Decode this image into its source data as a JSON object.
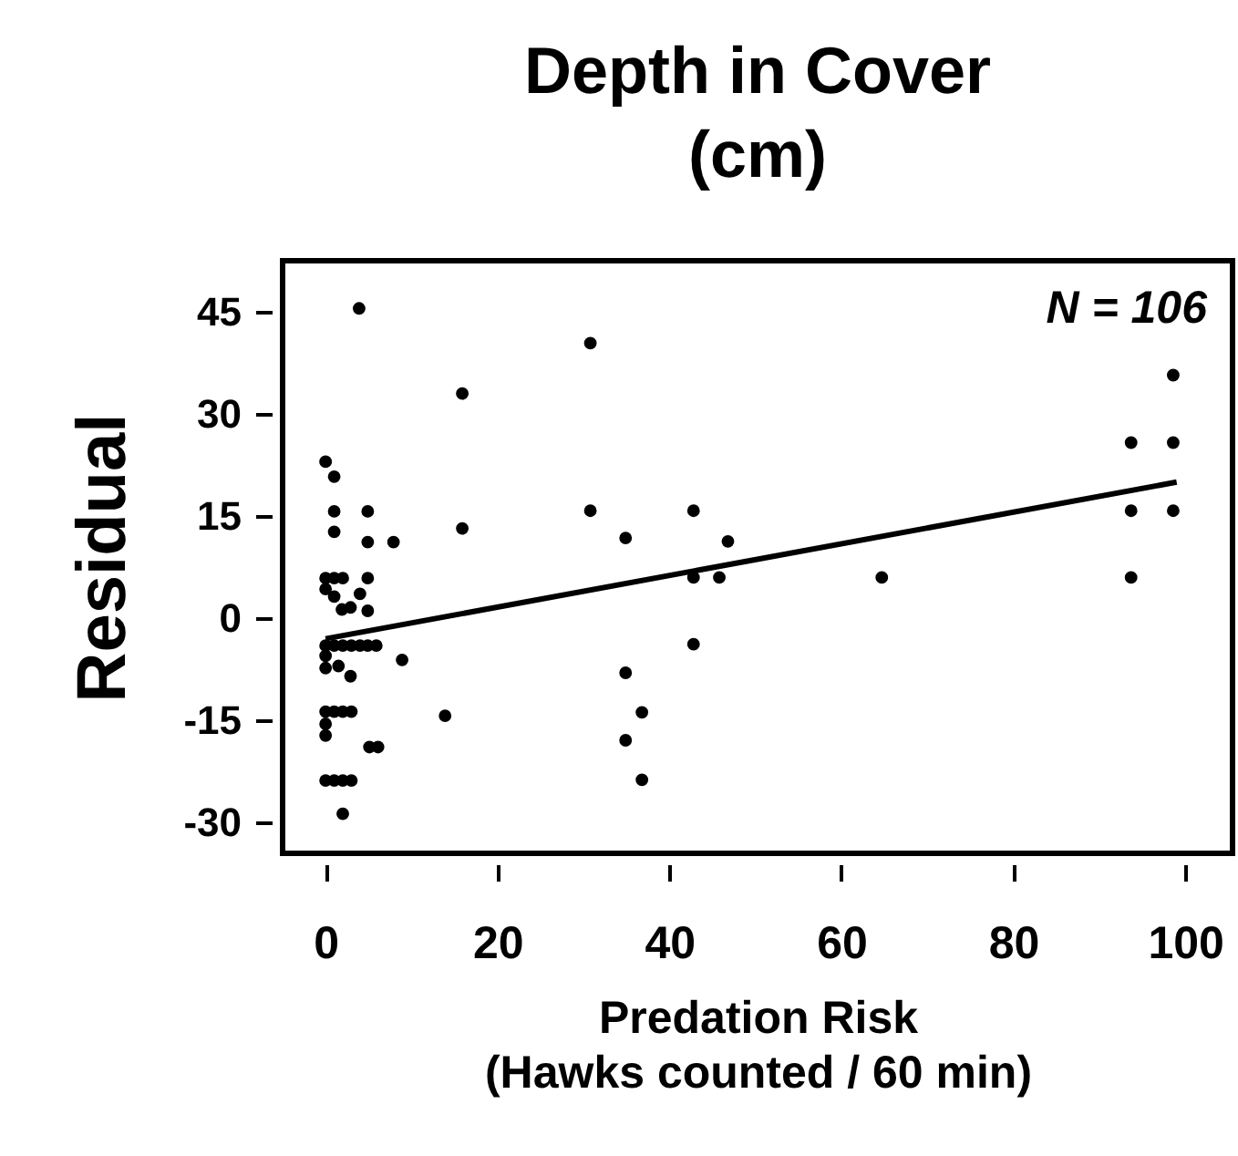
{
  "chart_data": {
    "type": "scatter",
    "title": "Depth in Cover\n(cm)",
    "xlabel": "Predation Risk\n(Hawks counted / 60 min)",
    "ylabel": "Residual",
    "annotations": [
      "N = 106"
    ],
    "xlim": [
      -5,
      105.5
    ],
    "ylim": [
      -34.5,
      52.5
    ],
    "xticks": [
      0,
      20,
      40,
      60,
      80,
      100
    ],
    "yticks": [
      -30,
      -15,
      0,
      15,
      30,
      45
    ],
    "grid": false,
    "series": [
      {
        "marker": "circle",
        "color": "#000000",
        "x": [
          3.9,
          15.9,
          0,
          1,
          1,
          4.9,
          1,
          4.9,
          7.9,
          15.9,
          0,
          1,
          2,
          0,
          1,
          4,
          4.9,
          1.9,
          2.9,
          4.9,
          0,
          1,
          2,
          3,
          4,
          4.9,
          5.9,
          8.9,
          0,
          0,
          1.5,
          2.9,
          0,
          1,
          2,
          3,
          0,
          0,
          13.9,
          5.1,
          6.1,
          0,
          1,
          2,
          3,
          2,
          30.8,
          30.8,
          34.9,
          42.8,
          46.8,
          42.8,
          45.8,
          64.7,
          42.8,
          34.9,
          36.8,
          34.9,
          36.8,
          98.6,
          93.7,
          98.6,
          93.7,
          98.6,
          93.7
        ],
        "values": [
          45.5,
          33,
          23,
          20.8,
          15.7,
          15.7,
          12.7,
          11.2,
          11.2,
          13.2,
          5.9,
          5.9,
          5.9,
          4.3,
          3.2,
          3.6,
          5.9,
          1.3,
          1.6,
          1.1,
          -4,
          -4,
          -4,
          -4,
          -4,
          -4,
          -4,
          -6.1,
          -5.5,
          -7.3,
          -7,
          -8.5,
          -13.7,
          -13.7,
          -13.7,
          -13.7,
          -15.5,
          -17.2,
          -14.3,
          -18.9,
          -18.9,
          -23.8,
          -23.8,
          -23.8,
          -23.8,
          -28.7,
          40.4,
          15.8,
          11.8,
          15.8,
          11.3,
          6,
          6,
          6,
          -3.8,
          -8,
          -13.8,
          -17.9,
          -23.7,
          35.7,
          25.8,
          25.8,
          15.8,
          15.8,
          6
        ]
      },
      {
        "type": "line",
        "color": "#000000",
        "x": [
          0,
          99
        ],
        "values": [
          -3,
          20
        ]
      }
    ]
  }
}
